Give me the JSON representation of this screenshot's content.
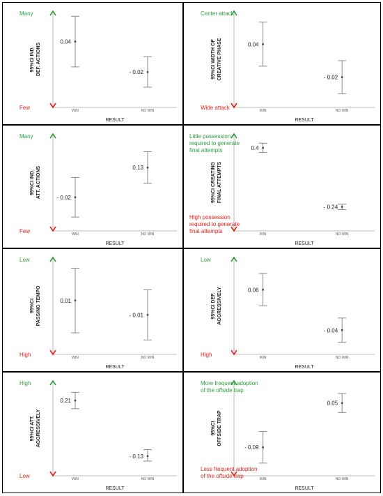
{
  "figure": {
    "accent_good": "#2e9e3e",
    "accent_bad": "#e0221b",
    "errorbar_color": "#8a8a8a"
  },
  "chart_data": [
    {
      "type": "errorbar",
      "ylabel": "95%CI IND. DEF. ACTIONS",
      "xlabel": "RESULT",
      "categories": [
        "WIN",
        "NO WIN"
      ],
      "values": [
        0.04,
        -0.02
      ],
      "value_labels": [
        "0.04",
        "- 0.02"
      ],
      "ci_low": [
        -0.01,
        -0.05
      ],
      "ci_high": [
        0.09,
        0.01
      ],
      "top_label": "Many",
      "bottom_label": "Few",
      "ylim": [
        -0.09,
        0.1
      ]
    },
    {
      "type": "errorbar",
      "ylabel": "95%CI WIDTH OF CREATIVE PHASE",
      "xlabel": "RESULT",
      "categories": [
        "WIN",
        "NO WIN"
      ],
      "values": [
        0.04,
        -0.02
      ],
      "value_labels": [
        "0.04",
        "- 0.02"
      ],
      "ci_low": [
        0.0,
        -0.05
      ],
      "ci_high": [
        0.08,
        0.01
      ],
      "top_label": "Center attack",
      "bottom_label": "Wide attack",
      "ylim": [
        -0.075,
        0.1
      ]
    },
    {
      "type": "errorbar",
      "ylabel": "95%CI IND. ATT. ACTIONS",
      "xlabel": "RESULT",
      "categories": [
        "WIN",
        "NO WIN"
      ],
      "values": [
        -0.02,
        0.13
      ],
      "value_labels": [
        "- 0.02",
        "0.13"
      ],
      "ci_low": [
        -0.12,
        0.05
      ],
      "ci_high": [
        0.08,
        0.21
      ],
      "top_label": "Many",
      "bottom_label": "Few",
      "ylim": [
        -0.19,
        0.3
      ]
    },
    {
      "type": "errorbar",
      "ylabel": "95%CI CREATING FINAL ATTEMPTS",
      "xlabel": "RESULT",
      "categories": [
        "WIN",
        "NO WIN"
      ],
      "values": [
        0.4,
        -0.24
      ],
      "value_labels": [
        "0.4",
        "- 0.24"
      ],
      "ci_low": [
        0.35,
        -0.27
      ],
      "ci_high": [
        0.45,
        -0.21
      ],
      "top_label": "Little possession required to generate final attempts",
      "bottom_label": "High possession required to generate final attempts",
      "ylim": [
        -0.5,
        0.55
      ]
    },
    {
      "type": "errorbar",
      "ylabel": "95%CI PASSING TEMPO",
      "xlabel": "RESULT",
      "categories": [
        "WIN",
        "NO WIN"
      ],
      "values": [
        0.01,
        -0.01
      ],
      "value_labels": [
        "0.01",
        "- 0.01"
      ],
      "ci_low": [
        -0.035,
        -0.045
      ],
      "ci_high": [
        0.055,
        0.025
      ],
      "top_label": "Low",
      "bottom_label": "High",
      "ylim": [
        -0.065,
        0.07
      ]
    },
    {
      "type": "errorbar",
      "ylabel": "95%CI DEF. AGGRESSIVELY",
      "xlabel": "RESULT",
      "categories": [
        "WIN",
        "NO WIN"
      ],
      "values": [
        0.06,
        -0.04
      ],
      "value_labels": [
        "0.06",
        "- 0.04"
      ],
      "ci_low": [
        0.02,
        -0.07
      ],
      "ci_high": [
        0.1,
        -0.01
      ],
      "top_label": "Low",
      "bottom_label": "High",
      "ylim": [
        -0.1,
        0.14
      ]
    },
    {
      "type": "errorbar",
      "ylabel": "95%CI ATT. AGGRESSIVELY",
      "xlabel": "RESULT",
      "categories": [
        "WIN",
        "NO WIN"
      ],
      "values": [
        0.21,
        -0.13
      ],
      "value_labels": [
        "0.21",
        "- 0.13"
      ],
      "ci_low": [
        0.16,
        -0.16
      ],
      "ci_high": [
        0.26,
        -0.09
      ],
      "top_label": "High",
      "bottom_label": "Low",
      "ylim": [
        -0.25,
        0.33
      ]
    },
    {
      "type": "errorbar",
      "ylabel": "95%CI OFFSIDE TRAP",
      "xlabel": "RESULT",
      "categories": [
        "WIN",
        "NO WIN"
      ],
      "values": [
        -0.09,
        0.05
      ],
      "value_labels": [
        "- 0.09",
        "0.05"
      ],
      "ci_low": [
        -0.14,
        0.02
      ],
      "ci_high": [
        -0.04,
        0.08
      ],
      "top_label": "More frequent adoption of the offside trap",
      "bottom_label": "Less frequent adoption of the offside trap",
      "ylim": [
        -0.18,
        0.12
      ]
    }
  ]
}
